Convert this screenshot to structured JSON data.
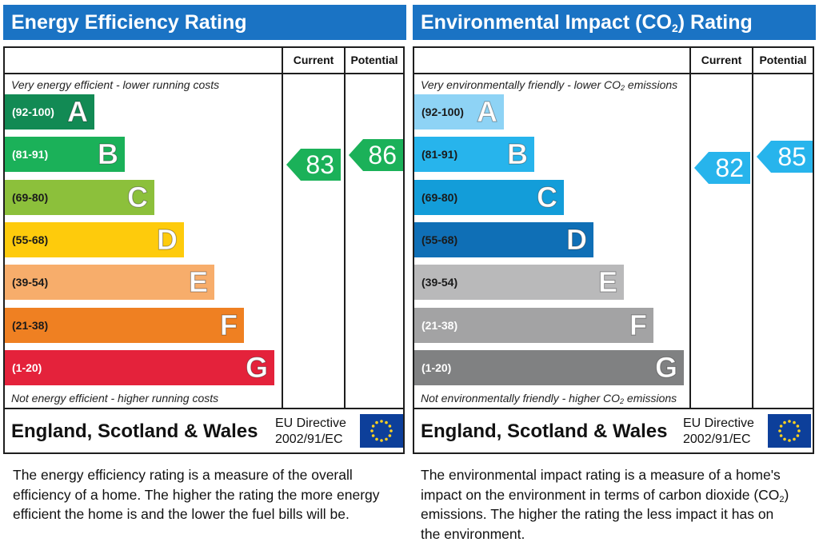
{
  "energy": {
    "title": "Energy Efficiency Rating",
    "col_current": "Current",
    "col_potential": "Potential",
    "top_note": "Very energy efficient - lower running costs",
    "bottom_note": "Not energy efficient - higher running costs",
    "bands": [
      {
        "range": "(92-100)",
        "letter": "A",
        "color": "#128a54",
        "text_color": "#ffffff"
      },
      {
        "range": "(81-91)",
        "letter": "B",
        "color": "#1bb159",
        "text_color": "#ffffff"
      },
      {
        "range": "(69-80)",
        "letter": "C",
        "color": "#8cc03b",
        "text_color": "#1a1a1a"
      },
      {
        "range": "(55-68)",
        "letter": "D",
        "color": "#fecb0c",
        "text_color": "#1a1a1a"
      },
      {
        "range": "(39-54)",
        "letter": "E",
        "color": "#f7ad6b",
        "text_color": "#1a1a1a"
      },
      {
        "range": "(21-38)",
        "letter": "F",
        "color": "#ef8022",
        "text_color": "#1a1a1a"
      },
      {
        "range": "(1-20)",
        "letter": "G",
        "color": "#e4223b",
        "text_color": "#ffffff"
      }
    ],
    "current": {
      "value": "83",
      "color": "#1bb159"
    },
    "potential": {
      "value": "86",
      "color": "#1bb159"
    },
    "region": "England, Scotland & Wales",
    "directive_line1": "EU Directive",
    "directive_line2": "2002/91/EC",
    "description": "The energy efficiency rating is a measure of the overall efficiency of a home. The higher the rating the more energy efficient the home is and the lower the fuel bills will be."
  },
  "environment": {
    "title_pre": "Environmental Impact (CO",
    "title_sub": "2",
    "title_post": ") Rating",
    "col_current": "Current",
    "col_potential": "Potential",
    "top_note_pre": "Very environmentally friendly - lower CO",
    "top_note_sub": "2",
    "top_note_post": " emissions",
    "bottom_note_pre": "Not environmentally friendly - higher CO",
    "bottom_note_sub": "2",
    "bottom_note_post": " emissions",
    "bands": [
      {
        "range": "(92-100)",
        "letter": "A",
        "color": "#8ed3f5",
        "text_color": "#1a1a1a"
      },
      {
        "range": "(81-91)",
        "letter": "B",
        "color": "#27b4ec",
        "text_color": "#1a1a1a"
      },
      {
        "range": "(69-80)",
        "letter": "C",
        "color": "#139dd9",
        "text_color": "#1a1a1a"
      },
      {
        "range": "(55-68)",
        "letter": "D",
        "color": "#0f6fb6",
        "text_color": "#1a1a1a"
      },
      {
        "range": "(39-54)",
        "letter": "E",
        "color": "#b9b9ba",
        "text_color": "#1a1a1a"
      },
      {
        "range": "(21-38)",
        "letter": "F",
        "color": "#a3a3a4",
        "text_color": "#ffffff"
      },
      {
        "range": "(1-20)",
        "letter": "G",
        "color": "#808182",
        "text_color": "#ffffff"
      }
    ],
    "current": {
      "value": "82",
      "color": "#27b4ec"
    },
    "potential": {
      "value": "85",
      "color": "#27b4ec"
    },
    "region": "England, Scotland & Wales",
    "directive_line1": "EU Directive",
    "directive_line2": "2002/91/EC",
    "description_pre": "The environmental impact rating is a measure of a home's impact on the environment in terms of carbon dioxide (CO",
    "description_sub": "2",
    "description_post": ") emissions. The higher the rating the less impact it has on the environment."
  }
}
